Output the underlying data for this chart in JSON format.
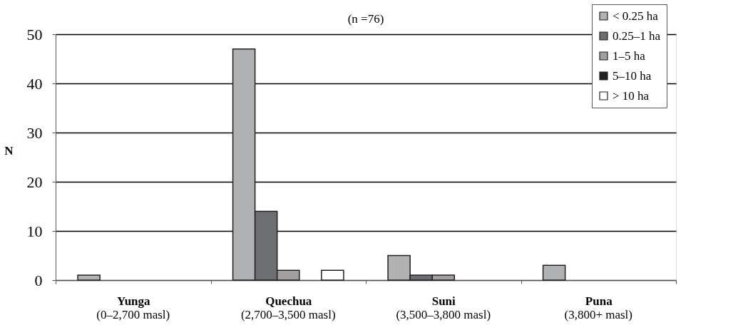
{
  "chart_data": {
    "type": "bar",
    "title": "(n =76)",
    "ylabel": "N",
    "categories": [
      "Yunga\n(0–2,700 masl)",
      "Quechua\n(2,700–3,500 masl)",
      "Suni\n(3,500–3,800 masl)",
      "Puna\n(3,800+ masl)"
    ],
    "series": [
      {
        "name": "< 0.25 ha",
        "color": "#b0b1b3",
        "values": [
          1,
          47,
          5,
          3
        ]
      },
      {
        "name": "0.25–1 ha",
        "color": "#6d6e71",
        "values": [
          null,
          14,
          1,
          null
        ]
      },
      {
        "name": "1–5 ha",
        "color": "#a39fa0",
        "values": [
          null,
          2,
          1,
          null
        ]
      },
      {
        "name": "5–10 ha",
        "color": "#231f20",
        "values": [
          null,
          null,
          null,
          null
        ]
      },
      {
        "name": "> 10 ha",
        "color": "#ffffff",
        "values": [
          null,
          2,
          null,
          null
        ]
      }
    ],
    "ylim": [
      0,
      50
    ],
    "yticks": [
      0,
      10,
      20,
      30,
      40,
      50
    ],
    "grid": "y",
    "legend": "top right"
  }
}
